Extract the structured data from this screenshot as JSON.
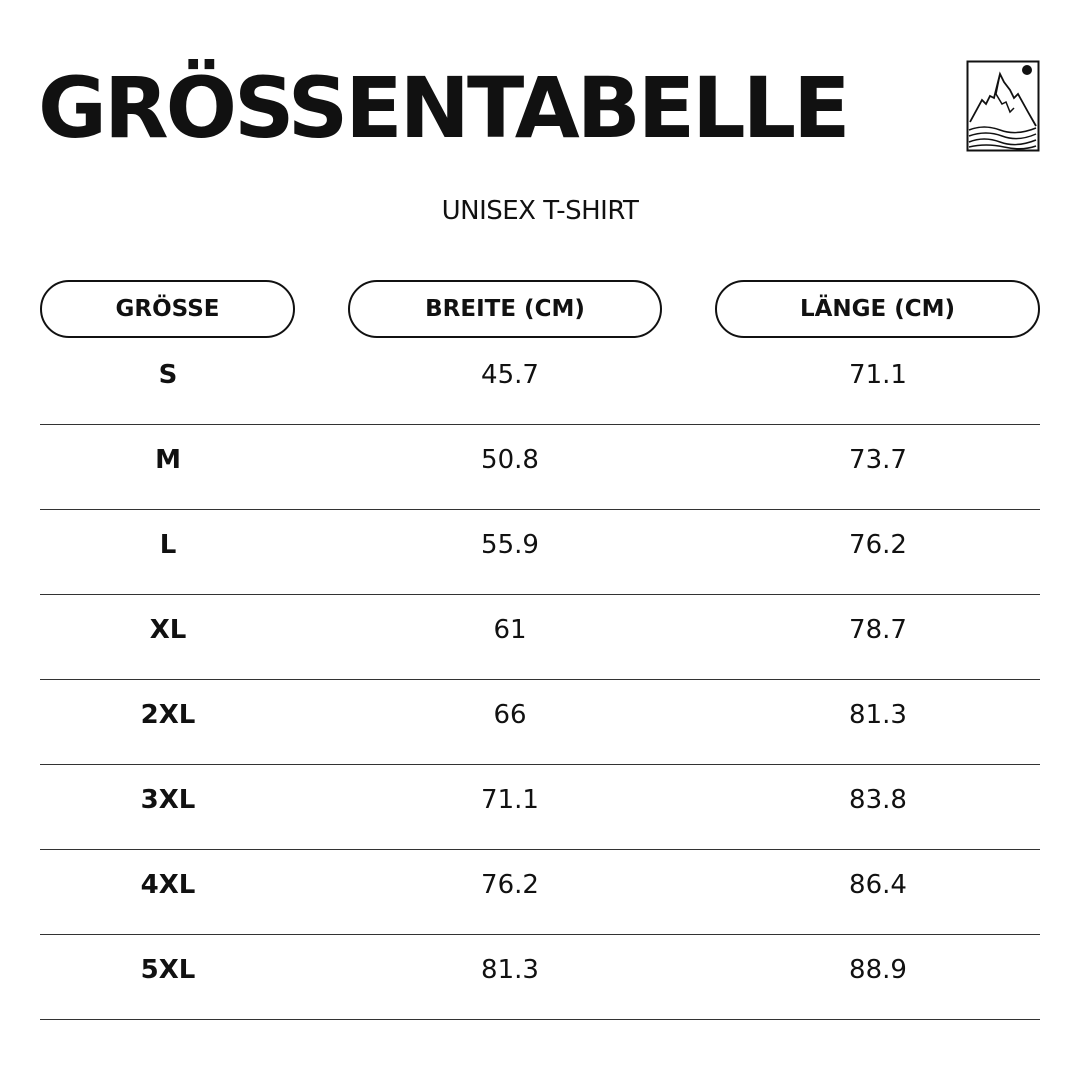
{
  "title": "GRÖSSENTABELLE",
  "subtitle": "UNISEX T-SHIRT",
  "logo": "mountain-logo-icon",
  "headers": [
    "GRÖSSE",
    "BREITE (CM)",
    "LÄNGE (CM)"
  ],
  "rows": [
    [
      "S",
      "45.7",
      "71.1"
    ],
    [
      "M",
      "50.8",
      "73.7"
    ],
    [
      "L",
      "55.9",
      "76.2"
    ],
    [
      "XL",
      "61",
      "78.7"
    ],
    [
      "2XL",
      "66",
      "81.3"
    ],
    [
      "3XL",
      "71.1",
      "83.8"
    ],
    [
      "4XL",
      "76.2",
      "86.4"
    ],
    [
      "5XL",
      "81.3",
      "88.9"
    ]
  ]
}
